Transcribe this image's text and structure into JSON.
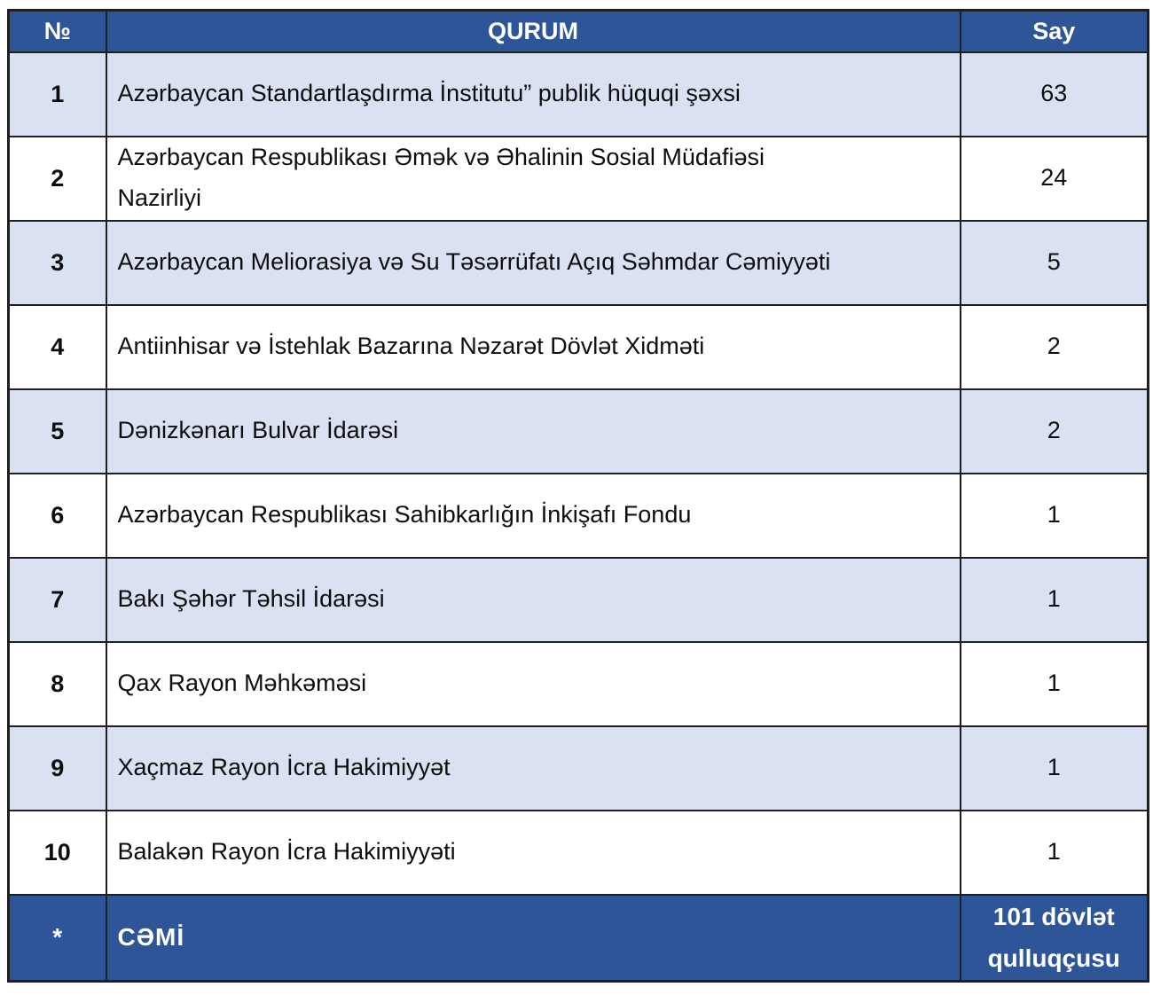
{
  "chart_data": {
    "type": "table",
    "columns": [
      "№",
      "QURUM",
      "Say"
    ],
    "rows": [
      {
        "no": "1",
        "qurum": "Azərbaycan Standartlaşdırma İnstitutu” publik hüquqi şəxsi",
        "say": "63"
      },
      {
        "no": "2",
        "qurum": "Azərbaycan Respublikası Əmək və Əhalinin Sosial Müdafiəsi\nNazirliyi",
        "say": "24"
      },
      {
        "no": "3",
        "qurum": "Azərbaycan Meliorasiya və Su Təsərrüfatı Açıq Səhmdar Cəmiyyəti",
        "say": "5"
      },
      {
        "no": "4",
        "qurum": "Antiinhisar və İstehlak Bazarına Nəzarət Dövlət Xidməti",
        "say": "2"
      },
      {
        "no": "5",
        "qurum": "Dənizkənarı Bulvar İdarəsi",
        "say": "2"
      },
      {
        "no": "6",
        "qurum": "Azərbaycan Respublikası Sahibkarlığın İnkişafı Fondu",
        "say": "1"
      },
      {
        "no": "7",
        "qurum": "Bakı Şəhər Təhsil İdarəsi",
        "say": "1"
      },
      {
        "no": "8",
        "qurum": "Qax Rayon Məhkəməsi",
        "say": "1"
      },
      {
        "no": "9",
        "qurum": "Xaçmaz Rayon İcra Hakimiyyət",
        "say": "1"
      },
      {
        "no": "10",
        "qurum": "Balakən Rayon İcra Hakimiyyəti",
        "say": "1"
      }
    ],
    "footer": {
      "no": "*",
      "label": "CƏMİ",
      "say": "101 dövlət\nqulluqçusu"
    }
  },
  "colors": {
    "header_bg": "#2E5597",
    "header_text": "#FFFFFF",
    "shaded_row_bg": "#D9E1F2",
    "plain_row_bg": "#FFFFFF",
    "body_text": "#0D0D0D",
    "border": "#1F1F1F"
  }
}
